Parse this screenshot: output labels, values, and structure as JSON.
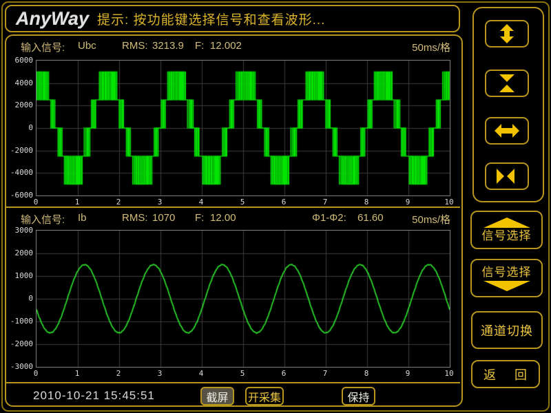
{
  "colors": {
    "gold": "#b8961e",
    "arrow": "#f0c200",
    "hint": "#dcb42a",
    "header_text": "#d2bc7a",
    "yellow_text": "#ecc53e",
    "axis_text": "#dcdcdc",
    "grid": "#3c3c3c",
    "btn_active_bg": "#565243",
    "wave1": "#00e400",
    "wave2": "#2ad82a"
  },
  "header": {
    "logo": "AnyWay",
    "hint": "提示: 按功能键选择信号和查看波形..."
  },
  "chart_data": [
    {
      "type": "line",
      "color": "#00e400",
      "title_row": {
        "label": "输入信号:",
        "signal": "Ubc",
        "rms_label": "RMS:",
        "rms": "3213.9",
        "freq_label": "F:",
        "freq": "12.002",
        "timebase": "50ms/格"
      },
      "xlim": [
        0,
        10
      ],
      "ylim": [
        -6000,
        6000
      ],
      "x_ticks": [
        "0",
        "1",
        "2",
        "3",
        "4",
        "5",
        "6",
        "7",
        "8",
        "9",
        "10"
      ],
      "y_ticks": [
        "6000",
        "4000",
        "2000",
        "0",
        "-2000",
        "-4000",
        "-6000"
      ],
      "grid": true,
      "waveform": {
        "kind": "pwm5",
        "levels": [
          -5000,
          -2500,
          0,
          2500,
          5000
        ],
        "peak": 5000,
        "cycles_shown": 6,
        "fundamental_hz": 12.002,
        "mod_index": 0.86,
        "carriers_per_div": 26,
        "phase_rad": 1.3446
      }
    },
    {
      "type": "line",
      "color": "#2ad82a",
      "title_row": {
        "label": "输入信号:",
        "signal": "Ib",
        "rms_label": "RMS:",
        "rms": "1070",
        "freq_label": "F:",
        "freq": "12.00",
        "phase_label": "Φ1-Φ2:",
        "phase": "61.60",
        "timebase": "50ms/格"
      },
      "xlim": [
        0,
        10
      ],
      "ylim": [
        -3000,
        3000
      ],
      "x_ticks": [
        "0",
        "1",
        "2",
        "3",
        "4",
        "5",
        "6",
        "7",
        "8",
        "9",
        "10"
      ],
      "y_ticks": [
        "3000",
        "2000",
        "1000",
        "0",
        "-1000",
        "-2000",
        "-3000"
      ],
      "grid": true,
      "waveform": {
        "kind": "sine",
        "amplitude": 1500,
        "cycles_shown": 6,
        "fundamental_hz": 12.0,
        "phase_rad": 3.4683,
        "noise": 18
      }
    }
  ],
  "sidebar": {
    "zoom_buttons": [
      {
        "icon": "vertical-expand-icon"
      },
      {
        "icon": "vertical-compress-icon"
      },
      {
        "icon": "horizontal-expand-icon"
      },
      {
        "icon": "horizontal-compress-icon"
      }
    ],
    "signal_select_up": "信号选择",
    "signal_select_down": "信号选择",
    "channel_switch": "通道切换",
    "back_left": "返",
    "back_right": "回"
  },
  "bottom_bar": {
    "timestamp": "2010-10-21 15:45:51",
    "screenshot": "截屏",
    "start_capture": "开采集",
    "hold": "保持"
  }
}
